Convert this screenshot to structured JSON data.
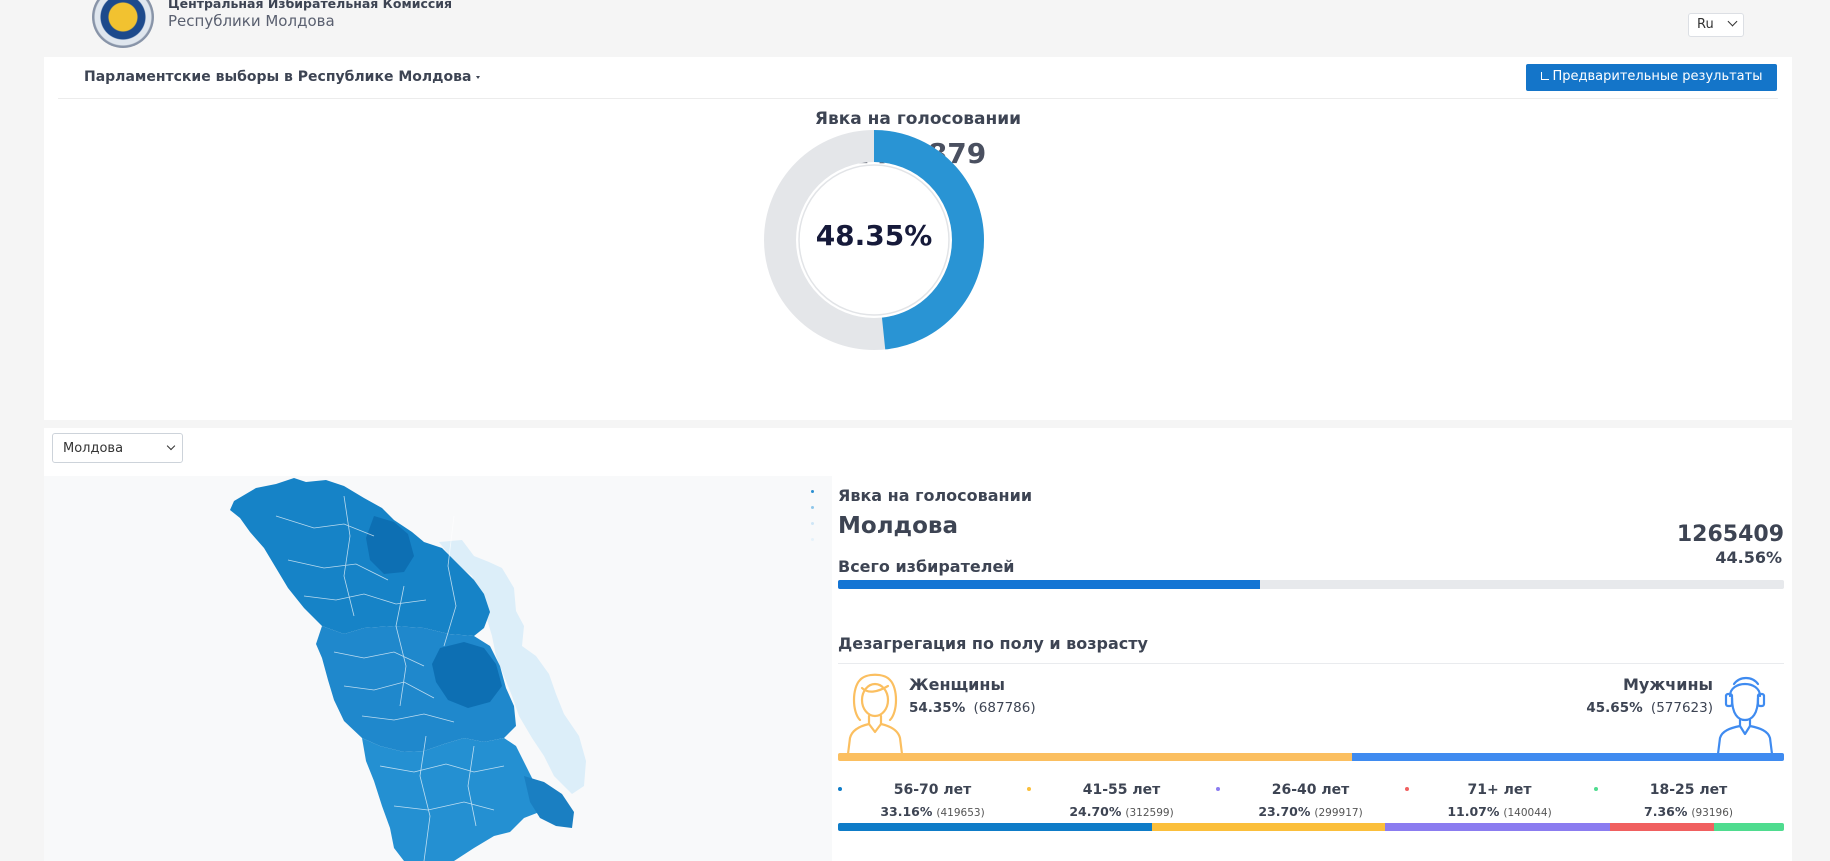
{
  "header": {
    "org_line1": "Центральная Избирательная Комиссия",
    "org_line2": "Республики Молдова",
    "logo_text": "Comisia Electorală Centrală",
    "language": "Ru"
  },
  "top": {
    "election_title": "Парламентские выборы в Республике Молдова",
    "results_button": "Предварительные результаты",
    "turnout_label": "Явка на голосовании",
    "turnout_count": "1473879",
    "turnout_percent_text": "48.35%",
    "turnout_percent": 48.35
  },
  "region": {
    "selected": "Молдова",
    "turnout_label": "Явка на голосовании",
    "name": "Молдова",
    "count": "1265409",
    "percent_text": "44.56%",
    "percent": 44.56,
    "voters_label": "Всего избирателей"
  },
  "disaggregation": {
    "title": "Дезагрегация по полу и возрасту",
    "female": {
      "label": "Женщины",
      "percent_text": "54.35%",
      "count_text": "(687786)",
      "percent": 54.35
    },
    "male": {
      "label": "Мужчины",
      "percent_text": "45.65%",
      "count_text": "(577623)",
      "percent": 45.65
    },
    "age_groups": [
      {
        "label": "56-70 лет",
        "percent_text": "33.16%",
        "count_text": "(419653)",
        "percent": 33.16,
        "color": "#0e7cc8"
      },
      {
        "label": "41-55 лет",
        "percent_text": "24.70%",
        "count_text": "(312599)",
        "percent": 24.7,
        "color": "#fbbf3b"
      },
      {
        "label": "26-40 лет",
        "percent_text": "23.70%",
        "count_text": "(299917)",
        "percent": 23.7,
        "color": "#8b7cf0"
      },
      {
        "label": "71+ лет",
        "percent_text": "11.07%",
        "count_text": "(140044)",
        "percent": 11.07,
        "color": "#f06060"
      },
      {
        "label": "18-25 лет",
        "percent_text": "7.36%",
        "count_text": "(93196)",
        "percent": 7.36,
        "color": "#4fdc8f"
      }
    ]
  },
  "colors": {
    "accent": "#1475c9",
    "donut_fill": "#2994d4",
    "donut_track": "#e4e6e9",
    "female": "#fbbf60",
    "male": "#3f8bf0",
    "map_dark": "#0d6fb3",
    "map_mid": "#1f88cc",
    "map_light": "#dceef9"
  }
}
